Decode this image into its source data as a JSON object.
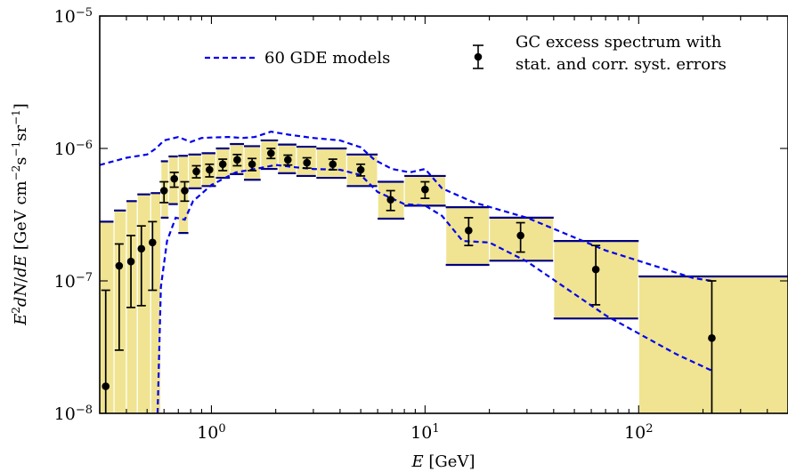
{
  "chart_data": {
    "type": "scatter",
    "title": "",
    "xlabel": "E [GeV]",
    "ylabel": "E^2 dN/dE [GeV cm^-2 s^-1 sr^-1]",
    "xscale": "log",
    "yscale": "log",
    "xlim": [
      0.3,
      500
    ],
    "ylim": [
      1e-08,
      1e-05
    ],
    "grid": false,
    "legend_placement": "top",
    "colors": {
      "band": "#f0e492",
      "band_edge": "#000080",
      "models": "#0000ee",
      "points": "#000000"
    },
    "x_tick_labels": [
      {
        "value": 1,
        "base": "10",
        "exp": "0"
      },
      {
        "value": 10,
        "base": "10",
        "exp": "1"
      },
      {
        "value": 100,
        "base": "10",
        "exp": "2"
      }
    ],
    "y_tick_labels": [
      {
        "value": 1e-08,
        "base": "10",
        "exp": "−8"
      },
      {
        "value": 1e-07,
        "base": "10",
        "exp": "−7"
      },
      {
        "value": 1e-06,
        "base": "10",
        "exp": "−6"
      },
      {
        "value": 1e-05,
        "base": "10",
        "exp": "−5"
      }
    ],
    "legend": {
      "models_label": "60 GDE models",
      "data_label_line1": "GC excess spectrum with",
      "data_label_line2": "stat. and corr. syst. errors"
    },
    "systematic_band": [
      {
        "xmin": 0.3,
        "xmax": 0.35,
        "ylo": 1e-08,
        "yhi": 2.8e-07
      },
      {
        "xmin": 0.35,
        "xmax": 0.4,
        "ylo": 1e-08,
        "yhi": 3.4e-07
      },
      {
        "xmin": 0.4,
        "xmax": 0.45,
        "ylo": 1e-08,
        "yhi": 4e-07
      },
      {
        "xmin": 0.45,
        "xmax": 0.52,
        "ylo": 1e-08,
        "yhi": 4.5e-07
      },
      {
        "xmin": 0.52,
        "xmax": 0.58,
        "ylo": 1e-08,
        "yhi": 4.6e-07
      },
      {
        "xmin": 0.58,
        "xmax": 0.63,
        "ylo": 3e-07,
        "yhi": 8e-07
      },
      {
        "xmin": 0.63,
        "xmax": 0.7,
        "ylo": 3.8e-07,
        "yhi": 8.7e-07
      },
      {
        "xmin": 0.7,
        "xmax": 0.78,
        "ylo": 2.3e-07,
        "yhi": 8.8e-07
      },
      {
        "xmin": 0.78,
        "xmax": 0.9,
        "ylo": 5e-07,
        "yhi": 9e-07
      },
      {
        "xmin": 0.9,
        "xmax": 1.05,
        "ylo": 5.2e-07,
        "yhi": 9.2e-07
      },
      {
        "xmin": 1.05,
        "xmax": 1.22,
        "ylo": 6e-07,
        "yhi": 1e-06
      },
      {
        "xmin": 1.22,
        "xmax": 1.42,
        "ylo": 6.4e-07,
        "yhi": 1.08e-06
      },
      {
        "xmin": 1.42,
        "xmax": 1.7,
        "ylo": 5.8e-07,
        "yhi": 1.04e-06
      },
      {
        "xmin": 1.7,
        "xmax": 2.05,
        "ylo": 7e-07,
        "yhi": 1.15e-06
      },
      {
        "xmin": 2.05,
        "xmax": 2.5,
        "ylo": 6.5e-07,
        "yhi": 1.07e-06
      },
      {
        "xmin": 2.5,
        "xmax": 3.1,
        "ylo": 6.2e-07,
        "yhi": 1.03e-06
      },
      {
        "xmin": 3.1,
        "xmax": 4.3,
        "ylo": 6e-07,
        "yhi": 1e-06
      },
      {
        "xmin": 4.3,
        "xmax": 6.0,
        "ylo": 5.2e-07,
        "yhi": 9e-07
      },
      {
        "xmin": 6.0,
        "xmax": 8.0,
        "ylo": 2.95e-07,
        "yhi": 5.6e-07
      },
      {
        "xmin": 8.0,
        "xmax": 12.5,
        "ylo": 3.7e-07,
        "yhi": 6.2e-07
      },
      {
        "xmin": 12.5,
        "xmax": 20.0,
        "ylo": 1.32e-07,
        "yhi": 3.6e-07
      },
      {
        "xmin": 20.0,
        "xmax": 40.0,
        "ylo": 1.42e-07,
        "yhi": 3e-07
      },
      {
        "xmin": 40.0,
        "xmax": 100.0,
        "ylo": 5.2e-08,
        "yhi": 2e-07
      },
      {
        "xmin": 100.0,
        "xmax": 500.0,
        "ylo": 1e-08,
        "yhi": 1.08e-07
      }
    ],
    "points": [
      {
        "x": 0.32,
        "y": 1.6e-08,
        "ylo": 1e-08,
        "yhi": 8.5e-08
      },
      {
        "x": 0.37,
        "y": 1.3e-07,
        "ylo": 3e-08,
        "yhi": 1.9e-07
      },
      {
        "x": 0.42,
        "y": 1.4e-07,
        "ylo": 6.3e-08,
        "yhi": 2.2e-07
      },
      {
        "x": 0.47,
        "y": 1.75e-07,
        "ylo": 6.5e-08,
        "yhi": 2.6e-07
      },
      {
        "x": 0.53,
        "y": 1.95e-07,
        "ylo": 8.5e-08,
        "yhi": 2.8e-07
      },
      {
        "x": 0.6,
        "y": 4.8e-07,
        "ylo": 3.9e-07,
        "yhi": 5.6e-07
      },
      {
        "x": 0.67,
        "y": 5.9e-07,
        "ylo": 5.1e-07,
        "yhi": 6.6e-07
      },
      {
        "x": 0.75,
        "y": 4.8e-07,
        "ylo": 4e-07,
        "yhi": 5.6e-07
      },
      {
        "x": 0.85,
        "y": 6.7e-07,
        "ylo": 6e-07,
        "yhi": 7.4e-07
      },
      {
        "x": 0.98,
        "y": 6.9e-07,
        "ylo": 6.1e-07,
        "yhi": 7.6e-07
      },
      {
        "x": 1.13,
        "y": 7.6e-07,
        "ylo": 6.8e-07,
        "yhi": 8.3e-07
      },
      {
        "x": 1.32,
        "y": 8.2e-07,
        "ylo": 7.4e-07,
        "yhi": 9e-07
      },
      {
        "x": 1.55,
        "y": 7.6e-07,
        "ylo": 6.8e-07,
        "yhi": 8.4e-07
      },
      {
        "x": 1.9,
        "y": 9.2e-07,
        "ylo": 8.4e-07,
        "yhi": 1e-06
      },
      {
        "x": 2.28,
        "y": 8.2e-07,
        "ylo": 7.5e-07,
        "yhi": 8.9e-07
      },
      {
        "x": 2.8,
        "y": 7.8e-07,
        "ylo": 7.1e-07,
        "yhi": 8.5e-07
      },
      {
        "x": 3.7,
        "y": 7.6e-07,
        "ylo": 6.9e-07,
        "yhi": 8.3e-07
      },
      {
        "x": 5.0,
        "y": 6.9e-07,
        "ylo": 6.2e-07,
        "yhi": 7.6e-07
      },
      {
        "x": 6.9,
        "y": 4.1e-07,
        "ylo": 3.4e-07,
        "yhi": 4.8e-07
      },
      {
        "x": 10.0,
        "y": 4.9e-07,
        "ylo": 4.2e-07,
        "yhi": 5.6e-07
      },
      {
        "x": 16.0,
        "y": 2.4e-07,
        "ylo": 1.85e-07,
        "yhi": 3e-07
      },
      {
        "x": 28.0,
        "y": 2.2e-07,
        "ylo": 1.65e-07,
        "yhi": 2.75e-07
      },
      {
        "x": 63.0,
        "y": 1.22e-07,
        "ylo": 6.6e-08,
        "yhi": 1.85e-07
      },
      {
        "x": 220.0,
        "y": 3.7e-08,
        "ylo": 1e-08,
        "yhi": 1e-07
      }
    ],
    "model_envelope": {
      "upper": [
        [
          0.3,
          7.5e-07
        ],
        [
          0.4,
          8.5e-07
        ],
        [
          0.5,
          9e-07
        ],
        [
          0.55,
          1e-06
        ],
        [
          0.6,
          1.15e-06
        ],
        [
          0.7,
          1.22e-06
        ],
        [
          0.8,
          1.12e-06
        ],
        [
          0.9,
          1.2e-06
        ],
        [
          1.0,
          1.21e-06
        ],
        [
          1.2,
          1.22e-06
        ],
        [
          1.4,
          1.2e-06
        ],
        [
          1.6,
          1.22e-06
        ],
        [
          1.9,
          1.34e-06
        ],
        [
          2.3,
          1.27e-06
        ],
        [
          3.0,
          1.2e-06
        ],
        [
          4.0,
          1.15e-06
        ],
        [
          5.0,
          1.02e-06
        ],
        [
          5.8,
          8.2e-07
        ],
        [
          7.0,
          7e-07
        ],
        [
          8.5,
          6.6e-07
        ],
        [
          10.0,
          7e-07
        ],
        [
          12.0,
          5e-07
        ],
        [
          17.0,
          3.9e-07
        ],
        [
          30.0,
          3e-07
        ],
        [
          70.0,
          1.7e-07
        ],
        [
          180.0,
          1.05e-07
        ],
        [
          220.0,
          1e-07
        ]
      ],
      "lower": [
        [
          0.56,
          1e-08
        ],
        [
          0.58,
          9e-08
        ],
        [
          0.62,
          2e-07
        ],
        [
          0.68,
          3e-07
        ],
        [
          0.75,
          2.9e-07
        ],
        [
          0.82,
          4e-07
        ],
        [
          1.0,
          5.3e-07
        ],
        [
          1.3,
          6.6e-07
        ],
        [
          1.6,
          7e-07
        ],
        [
          2.0,
          7.5e-07
        ],
        [
          2.5,
          7.2e-07
        ],
        [
          3.0,
          7e-07
        ],
        [
          4.0,
          6.9e-07
        ],
        [
          5.0,
          6.3e-07
        ],
        [
          6.0,
          4.7e-07
        ],
        [
          8.0,
          3.8e-07
        ],
        [
          10.0,
          3.7e-07
        ],
        [
          12.0,
          3.1e-07
        ],
        [
          15.0,
          2e-07
        ],
        [
          20.0,
          1.95e-07
        ],
        [
          30.0,
          1.4e-07
        ],
        [
          70.0,
          5.5e-08
        ],
        [
          150.0,
          2.8e-08
        ],
        [
          220.0,
          2.1e-08
        ]
      ]
    }
  }
}
